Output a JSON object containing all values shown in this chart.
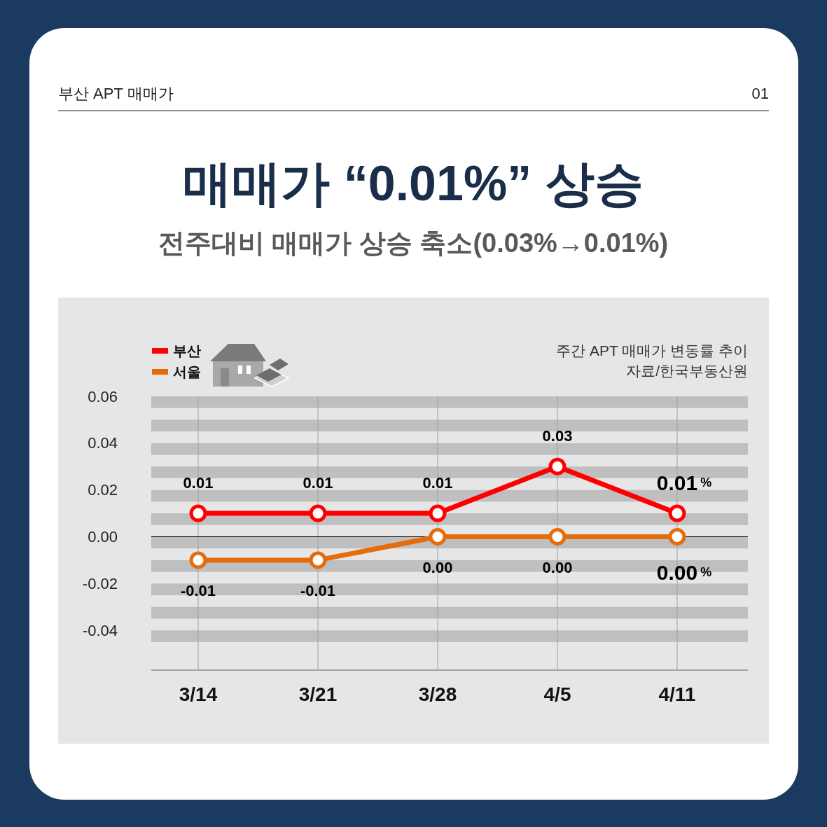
{
  "chart_data": {
    "type": "line",
    "title": "매매가 “0.01%” 상승",
    "subtitle": "전주대비 매매가 상승 축소(0.03%→0.01%)",
    "annotations": [
      "부산 APT 매매가",
      "01",
      "주간 APT 매매가 변동률 추이",
      "자료/한국부동산원"
    ],
    "categories": [
      "3/14",
      "3/21",
      "3/28",
      "4/5",
      "4/11"
    ],
    "series": [
      {
        "name": "부산",
        "color": "#ff0000",
        "values": [
          0.01,
          0.01,
          0.01,
          0.03,
          0.01
        ],
        "value_labels": [
          "0.01",
          "0.01",
          "0.01",
          "0.03",
          "0.01%"
        ]
      },
      {
        "name": "서울",
        "color": "#e46c0a",
        "values": [
          -0.01,
          -0.01,
          0,
          0,
          0
        ],
        "value_labels": [
          "-0.01",
          "-0.01",
          "0.00",
          "0.00",
          "0.00%"
        ]
      }
    ],
    "ylim": [
      -0.057,
      0.06
    ],
    "yticks": [
      0.06,
      0.04,
      0.02,
      {
        "value": 0,
        "label": "0.00"
      },
      -0.02,
      -0.04
    ],
    "ref_lines": [
      {
        "axis": "y",
        "value": 0,
        "color": "#000000"
      }
    ],
    "bands": [
      {
        "axis": "y",
        "from": 0.055,
        "to": 0.06,
        "color": "#bfbfbf"
      },
      {
        "axis": "y",
        "from": 0.045,
        "to": 0.05,
        "color": "#bfbfbf"
      },
      {
        "axis": "y",
        "from": 0.035,
        "to": 0.04,
        "color": "#bfbfbf"
      },
      {
        "axis": "y",
        "from": 0.025,
        "to": 0.03,
        "color": "#bfbfbf"
      },
      {
        "axis": "y",
        "from": 0.015,
        "to": 0.02,
        "color": "#bfbfbf"
      },
      {
        "axis": "y",
        "from": 0.005,
        "to": 0.01,
        "color": "#bfbfbf"
      },
      {
        "axis": "y",
        "from": -0.005,
        "to": 0,
        "color": "#bfbfbf"
      },
      {
        "axis": "y",
        "from": -0.015,
        "to": -0.01,
        "color": "#bfbfbf"
      },
      {
        "axis": "y",
        "from": -0.025,
        "to": -0.02,
        "color": "#bfbfbf"
      },
      {
        "axis": "y",
        "from": -0.035,
        "to": -0.03,
        "color": "#bfbfbf"
      },
      {
        "axis": "y",
        "from": -0.045,
        "to": -0.04,
        "color": "#bfbfbf"
      }
    ],
    "grid": "x",
    "legend": "top left",
    "marker": "circle",
    "line_style": "solid"
  }
}
